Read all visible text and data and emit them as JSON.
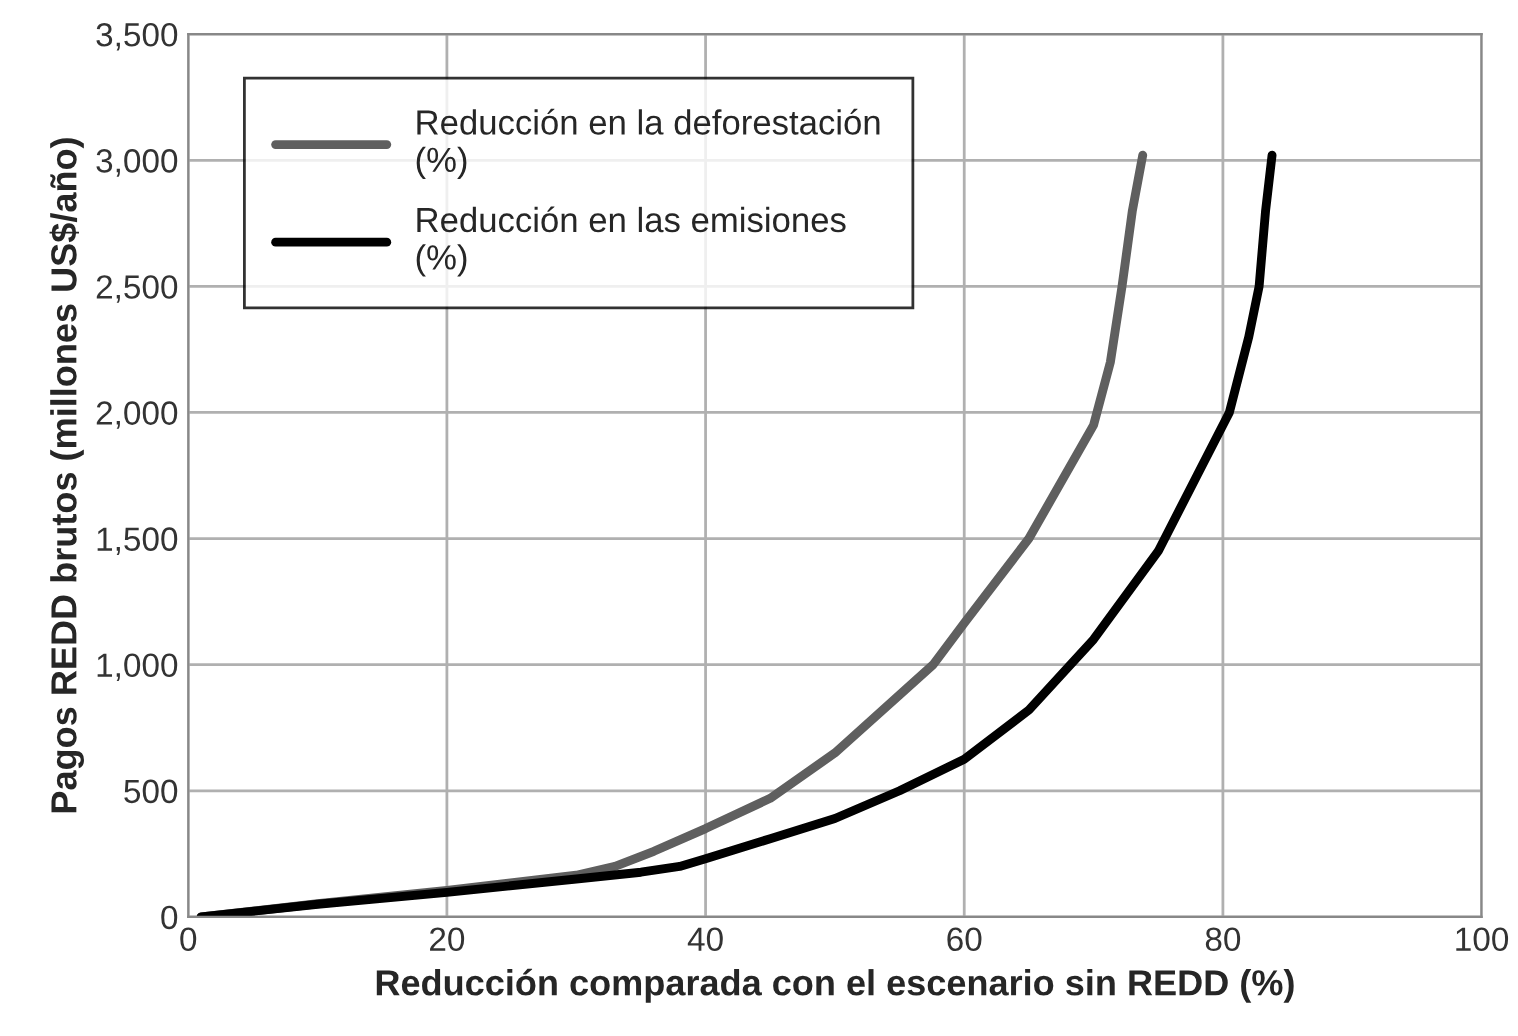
{
  "chart_data": {
    "type": "line",
    "xlabel": "Reducción comparada con el escenario sin REDD (%)",
    "ylabel": "Pagos REDD brutos (millones US$/año)",
    "xlim": [
      0,
      100
    ],
    "xticks": [
      0,
      20,
      40,
      60,
      80,
      100
    ],
    "ylim": [
      0,
      3500
    ],
    "yticks": [
      {
        "value": 0,
        "label": "0"
      },
      {
        "value": 500,
        "label": "500"
      },
      {
        "value": 1000,
        "label": "1,000"
      },
      {
        "value": 1500,
        "label": "1,500"
      },
      {
        "value": 2000,
        "label": "2,000"
      },
      {
        "value": 2500,
        "label": "2,500"
      },
      {
        "value": 3000,
        "label": "3,000"
      },
      {
        "value": 3500,
        "label": "3,500"
      }
    ],
    "grid": true,
    "legend": "top left",
    "marker": "none",
    "line_style": "solid",
    "series": [
      {
        "name": "Reducción en la deforestación (%)",
        "color": "#5f5f5f",
        "x": [
          1,
          10,
          20,
          30,
          33,
          36,
          40,
          45,
          50,
          55,
          57.6,
          60,
          65,
          70,
          71.3,
          72.2,
          73,
          73.8
        ],
        "values": [
          0,
          52,
          105,
          165,
          200,
          260,
          350,
          470,
          650,
          880,
          1000,
          1165,
          1500,
          1950,
          2200,
          2500,
          2800,
          3020
        ]
      },
      {
        "name": "Reducción en las emisiones (%)",
        "color": "#000000",
        "x": [
          1,
          10,
          20,
          30,
          35,
          38,
          40,
          45,
          50,
          55,
          60,
          65,
          70,
          75,
          78,
          80.5,
          82,
          82.8,
          83.3,
          83.8
        ],
        "values": [
          0,
          50,
          97,
          150,
          177,
          200,
          230,
          310,
          390,
          500,
          625,
          820,
          1100,
          1450,
          1750,
          2000,
          2300,
          2500,
          2800,
          3020
        ]
      }
    ]
  }
}
